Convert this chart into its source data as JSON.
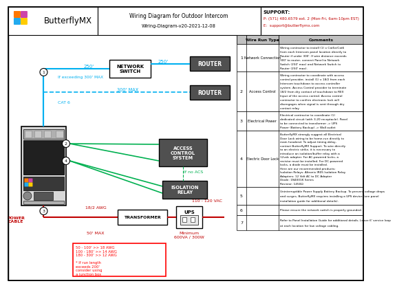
{
  "title": "Wiring Diagram for Outdoor Intercom",
  "subtitle": "Wiring-Diagram-v20-2021-12-08",
  "logo_text": "ButterflyMX",
  "support_label": "SUPPORT:",
  "support_phone": "P: (571) 480.6579 ext. 2 (Mon-Fri, 6am-10pm EST)",
  "support_email": "E:  support@butterflymx.com",
  "bg_color": "#ffffff",
  "cyan_color": "#00b0f0",
  "green_color": "#00b050",
  "red_color": "#ff0000",
  "dark_red": "#c00000",
  "gray_box": "#505050",
  "table_header_bg": "#c0c0c0",
  "table_rows": [
    {
      "num": "1",
      "type": "Network Connection",
      "comment": "Wiring contractor to install (1) x Cat5e/Cat6\nfrom each Intercom panel location directly to\nRouter if under 300'. If wire distance exceeds\n300' to router, connect Panel to Network\nSwitch (250' max) and Network Switch to\nRouter (250' max)."
    },
    {
      "num": "2",
      "type": "Access Control",
      "comment": "Wiring contractor to coordinate with access\ncontrol provider, install (1) x 18/2 from each\nIntercom touchdown to access controller\nsystem. Access Control provider to terminate\n18/2 from dry contact of touchdown to REX\nInput of the access control. Access control\ncontractor to confirm electronic lock will\ndisengages when signal is sent through dry\ncontact relay."
    },
    {
      "num": "3",
      "type": "Electrical Power",
      "comment": "Electrical contractor to coordinate (1)\ndedicated circuit (with 3-20 receptacle). Panel\nto be connected to transformer -> UPS\nPower (Battery Backup) -> Wall outlet"
    },
    {
      "num": "4",
      "type": "Electric Door Lock",
      "comment": "ButterflyMX strongly suggest all Electrical\nDoor Lock wiring to be home-run directly to\nmain headend. To adjust timing delay,\ncontact ButterflyMX Support. To wire directly\nto an electric strike, it is necessary to\nintroduce an isolation/buffer relay with a\n12vdc adapter. For AC-powered locks, a\nresistor must be installed. For DC-powered\nlocks, a diode must be installed.\nHere are our recommended products:\nIsolation Relays: Altronix IR05 Isolation Relay\nAdapters: 12 Volt AC to DC Adapter\nDiode: 1N4001K Series\nResistor: 1450Ω"
    },
    {
      "num": "5",
      "type": "",
      "comment": "Uninterruptible Power Supply Battery Backup. To prevent voltage drops\nand surges, ButterflyMX requires installing a UPS device (see panel\ninstallation guide for additional details)."
    },
    {
      "num": "6",
      "type": "",
      "comment": "Please ensure the network switch is properly grounded."
    },
    {
      "num": "7",
      "type": "",
      "comment": "Refer to Panel Installation Guide for additional details. Leave 6' service loop\nat each location for low voltage cabling."
    }
  ],
  "logo_colors": [
    "#ff7700",
    "#cc44aa",
    "#22aaee",
    "#ffcc00"
  ]
}
